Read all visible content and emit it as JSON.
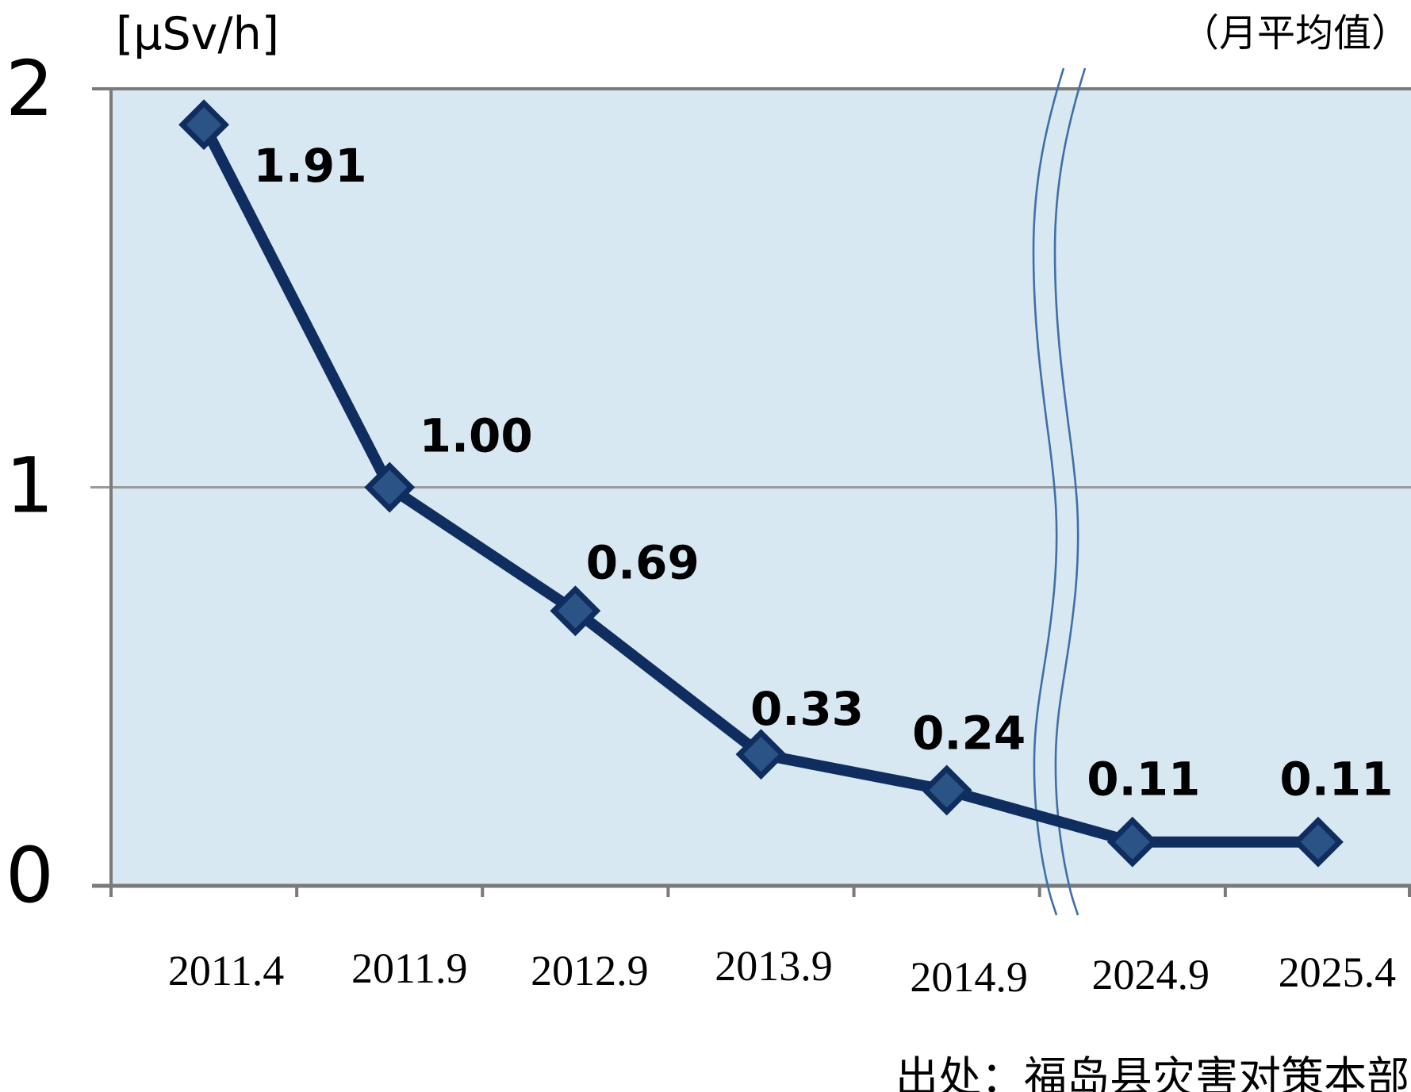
{
  "chart_data": {
    "type": "line",
    "title": "（月平均值）",
    "unit_label": "[μSv/h]",
    "source": "出处：福岛县灾害对策本部",
    "categories": [
      "2011.4",
      "2011.9",
      "2012.9",
      "2013.9",
      "2014.9",
      "2024.9",
      "2025.4"
    ],
    "values": [
      1.91,
      1.0,
      0.69,
      0.33,
      0.24,
      0.11,
      0.11
    ],
    "value_labels": [
      "1.91",
      "1.00",
      "0.69",
      "0.33",
      "0.24",
      "0.11",
      "0.11"
    ],
    "yticks": {
      "values": [
        2,
        1,
        0
      ],
      "labels": [
        "2",
        "1",
        "0"
      ]
    },
    "ylim": [
      0,
      2
    ],
    "grid": "horizontal",
    "legend": "none",
    "axis_break": {
      "between": [
        "2014.9",
        "2024.9"
      ],
      "style": "double-wavy-line"
    },
    "colors": {
      "plot_bg": "#d8e8f2",
      "axis": "#7a7a7a",
      "grid": "#9a9a9a",
      "line": "#0f2e5f",
      "marker_fill": "#2c5385",
      "marker_stroke": "#0f2e5f",
      "break_line": "#3f6fa8",
      "label": "#000000"
    }
  }
}
